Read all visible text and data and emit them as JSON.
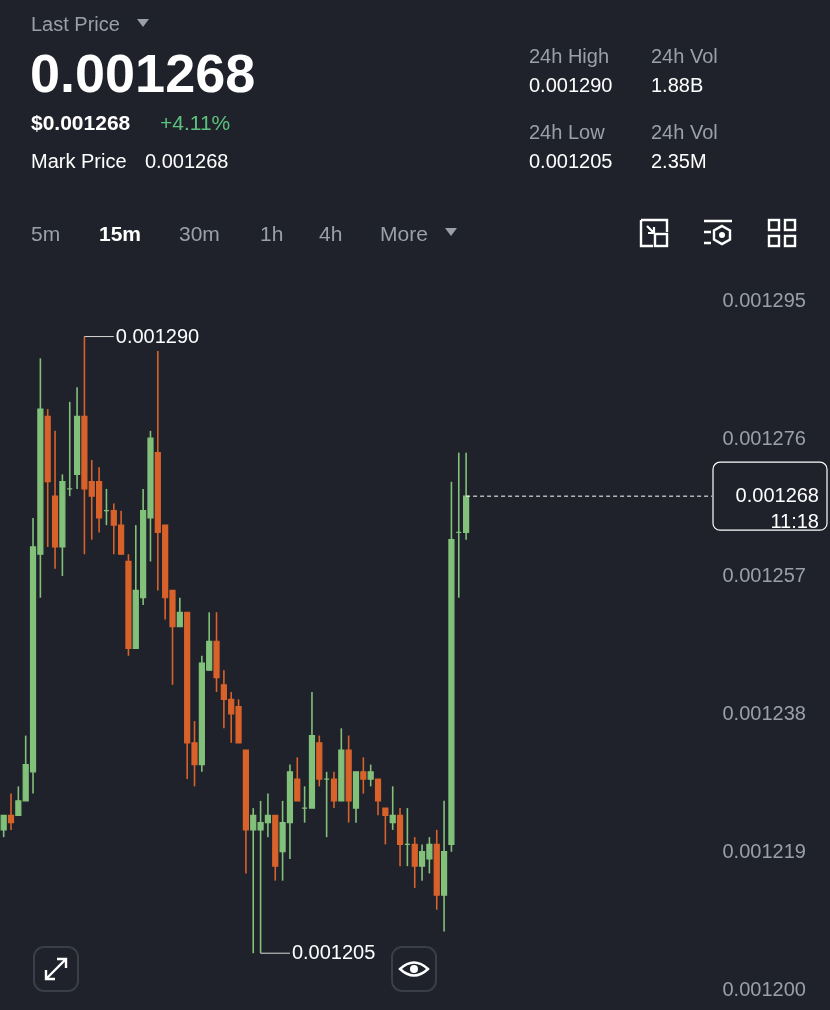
{
  "chart_data": {
    "type": "candlestick",
    "title": "0.001268",
    "annotations": [
      "Last Price",
      "$0.001268",
      "+4.11%",
      "Mark Price",
      "0.001268",
      "24h High",
      "0.001290",
      "24h Vol",
      "1.88B",
      "24h Low",
      "0.001205",
      "24h Vol",
      "2.35M",
      "5m",
      "15m",
      "30m",
      "1h",
      "4h",
      "More",
      "0.001290",
      "0.001205"
    ],
    "categories": [
      null,
      null,
      null,
      null,
      null,
      null,
      null,
      null,
      null,
      null,
      null,
      null,
      null,
      null,
      null,
      null,
      null,
      null,
      null,
      null,
      null,
      null,
      null,
      null,
      null,
      null,
      null,
      null,
      null,
      null,
      null,
      null,
      null,
      null,
      null,
      null,
      null,
      null,
      null,
      null,
      null,
      null,
      null,
      null,
      null,
      null,
      null,
      null,
      null,
      null,
      null,
      null,
      null,
      null,
      null,
      null,
      null,
      null,
      null,
      null,
      null,
      null,
      null,
      null,
      null,
      null,
      null,
      null,
      null,
      null,
      null,
      null,
      null,
      null,
      null,
      null,
      null,
      null,
      null,
      null,
      null,
      null,
      null,
      null,
      null,
      null,
      null,
      null,
      null,
      null,
      null,
      null,
      null,
      null,
      null,
      null,
      null
    ],
    "ohlc": [
      [
        0.001222,
        0.001224,
        0.001221,
        0.001224
      ],
      [
        0.001224,
        0.001227,
        0.001222,
        0.001223
      ],
      [
        0.001224,
        0.001228,
        0.001224,
        0.001226
      ],
      [
        0.001226,
        0.001235,
        0.001226,
        0.001231
      ],
      [
        0.00123,
        0.001265,
        0.001227,
        0.001261
      ],
      [
        0.00126,
        0.001287,
        0.001254,
        0.00128
      ],
      [
        0.001279,
        0.00128,
        0.001261,
        0.00127
      ],
      [
        0.001268,
        0.001277,
        0.001258,
        0.001261
      ],
      [
        0.001261,
        0.001271,
        0.001257,
        0.00127
      ],
      [
        0.001269,
        0.001281,
        0.001268,
        0.001269
      ],
      [
        0.001271,
        0.001283,
        0.001269,
        0.001279
      ],
      [
        0.001279,
        0.00129,
        0.00126,
        0.001269
      ],
      [
        0.00127,
        0.001273,
        0.001262,
        0.001268
      ],
      [
        0.00127,
        0.001272,
        0.001263,
        0.001265
      ],
      [
        0.001266,
        0.001269,
        0.001264,
        0.001266
      ],
      [
        0.001266,
        0.001267,
        0.00126,
        0.001264
      ],
      [
        0.001264,
        0.001266,
        0.00126,
        0.00126
      ],
      [
        0.001259,
        0.00126,
        0.001246,
        0.001247
      ],
      [
        0.001247,
        0.001264,
        0.001247,
        0.001255
      ],
      [
        0.001254,
        0.001269,
        0.001253,
        0.001266
      ],
      [
        0.001265,
        0.001277,
        0.001259,
        0.001276
      ],
      [
        0.001274,
        0.001288,
        0.001255,
        0.001263
      ],
      [
        0.001264,
        0.001264,
        0.001251,
        0.001254
      ],
      [
        0.001255,
        0.001255,
        0.001242,
        0.00125
      ],
      [
        0.00125,
        0.001254,
        0.00125,
        0.001252
      ],
      [
        0.001252,
        0.001252,
        0.001229,
        0.001234
      ],
      [
        0.001234,
        0.001237,
        0.001228,
        0.001231
      ],
      [
        0.001231,
        0.001246,
        0.00123,
        0.001245
      ],
      [
        0.001244,
        0.001252,
        0.001244,
        0.001248
      ],
      [
        0.001248,
        0.001252,
        0.001241,
        0.001243
      ],
      [
        0.001242,
        0.001244,
        0.001236,
        0.00124
      ],
      [
        0.00124,
        0.001241,
        0.001234,
        0.001238
      ],
      [
        0.001239,
        0.00124,
        0.001234,
        0.001234
      ],
      [
        0.001233,
        0.001233,
        0.001216,
        0.001222
      ],
      [
        0.001222,
        0.001225,
        0.001205,
        0.001224
      ],
      [
        0.001222,
        0.001226,
        0.001205,
        0.001223
      ],
      [
        0.001223,
        0.001227,
        0.001221,
        0.001224
      ],
      [
        0.001224,
        0.001224,
        0.001215,
        0.001217
      ],
      [
        0.001219,
        0.001226,
        0.001215,
        0.001223
      ],
      [
        0.001223,
        0.001231,
        0.001218,
        0.00123
      ],
      [
        0.001229,
        0.001232,
        0.001226,
        0.001226
      ],
      [
        0.001225,
        0.001228,
        0.001223,
        0.001225
      ],
      [
        0.001225,
        0.001241,
        0.001225,
        0.001235
      ],
      [
        0.001234,
        0.001235,
        0.001228,
        0.001229
      ],
      [
        0.001229,
        0.00123,
        0.001221,
        0.001229
      ],
      [
        0.001229,
        0.00123,
        0.001225,
        0.001226
      ],
      [
        0.001226,
        0.001236,
        0.001226,
        0.001233
      ],
      [
        0.001233,
        0.001235,
        0.001223,
        0.001226
      ],
      [
        0.001225,
        0.00123,
        0.001223,
        0.00123
      ],
      [
        0.00123,
        0.001232,
        0.001227,
        0.001229
      ],
      [
        0.001229,
        0.001231,
        0.001228,
        0.00123
      ],
      [
        0.001229,
        0.001229,
        0.001224,
        0.001226
      ],
      [
        0.001225,
        0.001225,
        0.00122,
        0.001224
      ],
      [
        0.001223,
        0.001228,
        0.001222,
        0.001224
      ],
      [
        0.001224,
        0.001225,
        0.001217,
        0.00122
      ],
      [
        0.00122,
        0.001225,
        0.001217,
        0.00122
      ],
      [
        0.00122,
        0.001221,
        0.001214,
        0.001217
      ],
      [
        0.001217,
        0.00122,
        0.001215,
        0.001219
      ],
      [
        0.001218,
        0.001221,
        0.001216,
        0.00122
      ],
      [
        0.00122,
        0.001222,
        0.001211,
        0.001213
      ],
      [
        0.001213,
        0.001226,
        0.001208,
        0.001219
      ],
      [
        0.00122,
        0.00127,
        0.001219,
        0.001262
      ],
      [
        0.001263,
        0.001274,
        0.001254,
        0.001263
      ],
      [
        0.001263,
        0.001274,
        0.001262,
        0.001268
      ],
      null,
      null,
      null,
      null,
      null,
      null,
      null,
      null,
      null,
      null,
      null,
      null,
      null,
      null,
      null,
      null,
      null,
      null,
      null,
      null,
      null,
      null,
      null,
      null,
      null,
      null,
      null,
      null,
      null,
      null,
      null,
      null,
      null
    ],
    "colors": [
      "#82c17a",
      "#d9622b",
      "#82c17a",
      "#82c17a",
      "#82c17a",
      "#82c17a",
      "#d9622b",
      "#d9622b",
      "#82c17a",
      "#82c17a",
      "#82c17a",
      "#d9622b",
      "#d9622b",
      "#d9622b",
      "#82c17a",
      "#d9622b",
      "#d9622b",
      "#d9622b",
      "#82c17a",
      "#82c17a",
      "#82c17a",
      "#d9622b",
      "#d9622b",
      "#d9622b",
      "#82c17a",
      "#d9622b",
      "#d9622b",
      "#82c17a",
      "#82c17a",
      "#d9622b",
      "#d9622b",
      "#d9622b",
      "#d9622b",
      "#d9622b",
      "#82c17a",
      "#82c17a",
      "#82c17a",
      "#d9622b",
      "#82c17a",
      "#82c17a",
      "#d9622b",
      "#82c17a",
      "#82c17a",
      "#d9622b",
      "#82c17a",
      "#d9622b",
      "#82c17a",
      "#d9622b",
      "#82c17a",
      "#d9622b",
      "#82c17a",
      "#d9622b",
      "#d9622b",
      "#82c17a",
      "#d9622b",
      "#82c17a",
      "#d9622b",
      "#82c17a",
      "#82c17a",
      "#d9622b",
      "#82c17a",
      "#82c17a",
      "#82c17a",
      "#82c17a",
      null,
      null,
      null,
      null,
      null,
      null,
      null,
      null,
      null,
      null,
      null,
      null,
      null,
      null,
      null,
      null,
      null,
      null,
      null,
      null,
      null,
      null,
      null,
      null,
      null,
      null,
      null,
      null,
      null,
      null,
      null,
      null,
      null
    ],
    "ylim": [
      0.001198,
      0.0013
    ],
    "yticks": [
      {
        "value": 0.0012,
        "label": "0.001200"
      },
      0.001219,
      0.001238,
      0.001257,
      0.001276,
      0.001295
    ],
    "tick_labels": "y",
    "ref_lines": [
      {
        "axis": "y",
        "value": 0.001268,
        "label": "0.001268\n11:18",
        "line_style": "dashed",
        "color": "#ffffff"
      }
    ]
  }
}
